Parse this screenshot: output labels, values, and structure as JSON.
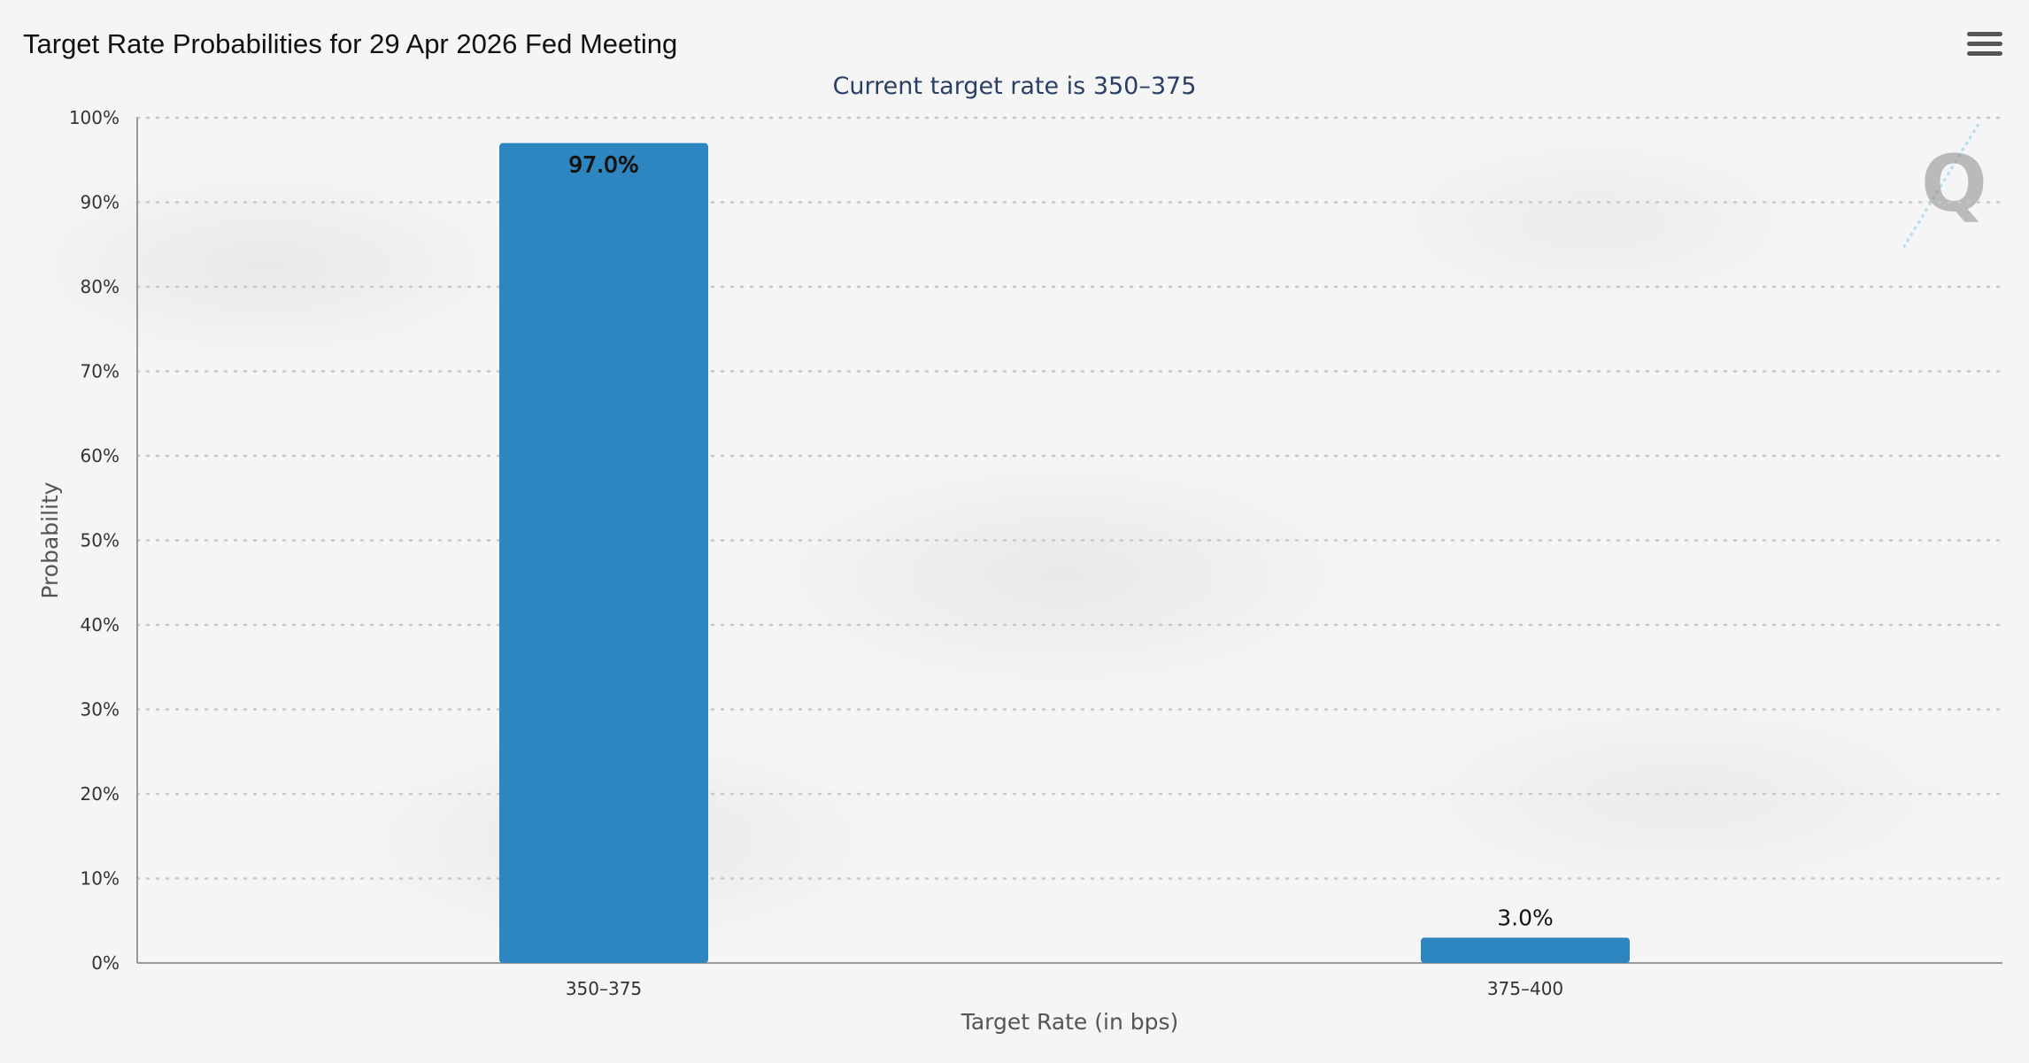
{
  "header": {
    "title": "Target Rate Probabilities for 29 Apr 2026 Fed Meeting",
    "subtitle": "Current target rate is 350–375",
    "menu_icon": "hamburger-menu-icon"
  },
  "colors": {
    "bar": "#2e86c1",
    "grid": "#c8c8c8",
    "axis": "#999999"
  },
  "chart_data": {
    "type": "bar",
    "title": "Target Rate Probabilities for 29 Apr 2026 Fed Meeting",
    "subtitle": "Current target rate is 350–375",
    "xlabel": "Target Rate (in bps)",
    "ylabel": "Probability",
    "categories": [
      "350–375",
      "375–400"
    ],
    "values": [
      97.0,
      3.0
    ],
    "data_labels": [
      "97.0%",
      "3.0%"
    ],
    "ylim": [
      0,
      100
    ],
    "yticks": [
      0,
      10,
      20,
      30,
      40,
      50,
      60,
      70,
      80,
      90,
      100
    ],
    "ytick_labels": [
      "0%",
      "10%",
      "20%",
      "30%",
      "40%",
      "50%",
      "60%",
      "70%",
      "80%",
      "90%",
      "100%"
    ],
    "grid": true,
    "legend": "none"
  }
}
